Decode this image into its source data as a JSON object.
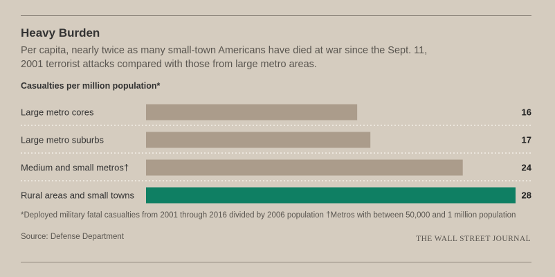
{
  "title": "Heavy Burden",
  "subtitle": "Per capita, nearly twice as many small-town Americans have died at war since the Sept. 11, 2001 terrorist attacks compared with those from large metro areas.",
  "footnote": "*Deployed military fatal casualties from 2001 through 2016 divided by 2006 population   †Metros with between 50,000 and 1 million population",
  "source": "Source: Defense Department",
  "credit": "THE WALL STREET JOURNAL",
  "chart_data": {
    "type": "bar",
    "orientation": "horizontal",
    "title": "Casualties per million population*",
    "categories": [
      "Large metro cores",
      "Large metro suburbs",
      "Medium and small metros†",
      "Rural areas and small towns"
    ],
    "values": [
      16,
      17,
      24,
      28
    ],
    "value_labels": [
      "16",
      "17",
      "24",
      "28"
    ],
    "xlim": [
      0,
      28
    ],
    "highlight_index": 3,
    "colors": {
      "default": "#ab9c8b",
      "highlight": "#0f7f63"
    }
  }
}
